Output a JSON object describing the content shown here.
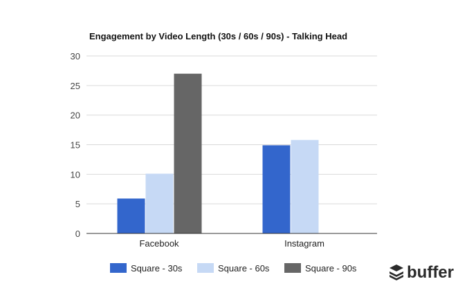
{
  "chart_data": {
    "type": "bar",
    "title": "Engagement by Video Length (30s / 60s / 90s) - Talking Head",
    "categories": [
      "Facebook",
      "Instagram"
    ],
    "series": [
      {
        "name": "Square - 30s",
        "values": [
          5.9,
          14.9
        ],
        "color": "#3366cc"
      },
      {
        "name": "Square - 60s",
        "values": [
          10.1,
          15.8
        ],
        "color": "#c6d9f5"
      },
      {
        "name": "Square - 90s",
        "values": [
          27,
          null
        ],
        "color": "#666666"
      }
    ],
    "ylim": [
      0,
      30
    ],
    "yticks": [
      "0",
      "5",
      "10",
      "15",
      "20",
      "25",
      "30"
    ],
    "xlabel": "",
    "ylabel": "",
    "grid": true,
    "legend_position": "bottom"
  },
  "brand": {
    "name": "buffer",
    "icon": "buffer-layers-icon"
  }
}
